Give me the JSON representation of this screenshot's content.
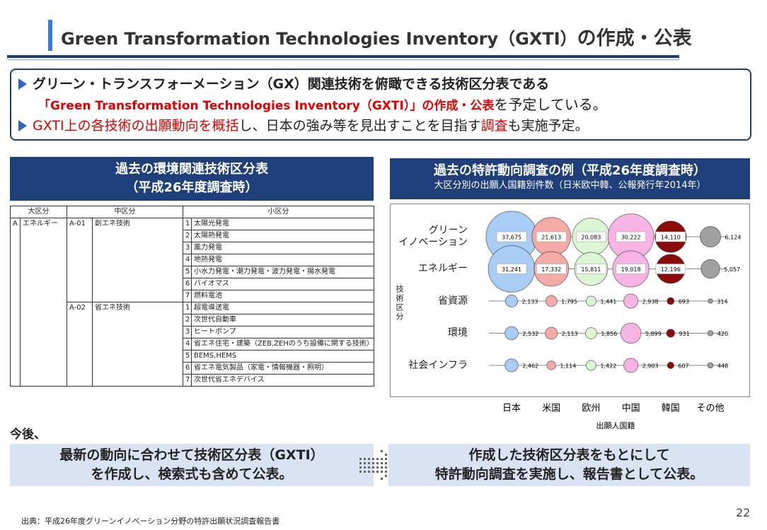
{
  "header": {
    "title": "Green Transformation Technologies Inventory（GXTI）",
    "title_suffix": "の作成・公表"
  },
  "summary": {
    "line1": "グリーン・トランスフォーメーション（GX）関連技術を俯瞰できる技術区分表である",
    "line2": [
      "「Green Transformation Technologies Inventory（GXTI）」の作成・公表",
      "を予定している。"
    ],
    "line3": [
      "GXTI上の各技術の出願動向を概括",
      "し、日本の強み等を見出すことを目指す",
      "調査",
      "も実施予定。"
    ]
  },
  "left_panel": {
    "title": [
      "過去の環境関連技術区分表",
      "（平成26年度調査時）"
    ],
    "table": {
      "header": [
        "大区分",
        "中区分",
        "小区分"
      ],
      "major": {
        "code": "A",
        "name": "エネルギー"
      },
      "groups": [
        {
          "code": "A-01",
          "name": "創エネ技術",
          "items": [
            {
              "no": "1",
              "name": "太陽光発電"
            },
            {
              "no": "2",
              "name": "太陽熱発電"
            },
            {
              "no": "3",
              "name": "風力発電"
            },
            {
              "no": "4",
              "name": "地熱発電"
            },
            {
              "no": "5",
              "name": "小水力発電・潮力発電・波力発電・揚水発電"
            },
            {
              "no": "6",
              "name": "バイオマス"
            },
            {
              "no": "7",
              "name": "燃料電池"
            }
          ]
        },
        {
          "code": "A-02",
          "name": "省エネ技術",
          "items": [
            {
              "no": "1",
              "name": "超電導送電"
            },
            {
              "no": "2",
              "name": "次世代自動車"
            },
            {
              "no": "3",
              "name": "ヒートポンプ"
            },
            {
              "no": "4",
              "name": "省エネ住宅・建築（ZEB,ZEHのうち設備に関する技術）"
            },
            {
              "no": "5",
              "name": "BEMS,HEMS"
            },
            {
              "no": "6",
              "name": "省エネ電気製品（家電・情報機器・照明）"
            },
            {
              "no": "7",
              "name": "次世代省エネデバイス"
            }
          ]
        }
      ]
    }
  },
  "chart_data": {
    "type": "bubble",
    "title": "過去の特許動向調査の例（平成26年度調査時）",
    "subtitle": "大区分別の出願人国籍別件数（日米欧中韓、公報発行年2014年）",
    "y_label": "技術区分",
    "x_label": "出願人国籍",
    "categories": [
      "日本",
      "米国",
      "欧州",
      "中国",
      "韓国",
      "その他"
    ],
    "colors": [
      "#a9cdf5",
      "#f4aaa6",
      "#dcf5d4",
      "#f8b4e4",
      "#8b0a0a",
      "#a0a0a0"
    ],
    "series": [
      {
        "name": "グリーン\nイノベーション",
        "values": [
          37675,
          21613,
          20083,
          30222,
          14110,
          6124
        ],
        "value_labels": [
          "37,675",
          "21,613",
          "20,083",
          "30,222",
          "14,110",
          "6,124"
        ]
      },
      {
        "name": "エネルギー",
        "values": [
          31241,
          17332,
          15811,
          19018,
          12196,
          5057
        ],
        "value_labels": [
          "31,241",
          "17,332",
          "15,811",
          "19,018",
          "12,196",
          "5,057"
        ]
      },
      {
        "name": "省資源",
        "values": [
          2133,
          1795,
          1441,
          2938,
          693,
          314
        ],
        "value_labels": [
          "2,133",
          "1,795",
          "1,441",
          "2,938",
          "693",
          "314"
        ]
      },
      {
        "name": "環境",
        "values": [
          2532,
          2113,
          1856,
          5899,
          931,
          420
        ],
        "value_labels": [
          "2,532",
          "2,113",
          "1,856",
          "5,899",
          "931",
          "420"
        ]
      },
      {
        "name": "社会インフラ",
        "values": [
          2462,
          1114,
          1422,
          2903,
          607,
          448
        ],
        "value_labels": [
          "2,462",
          "1,114",
          "1,422",
          "2,903",
          "607",
          "448"
        ]
      }
    ]
  },
  "outlook": {
    "label": "今後、",
    "box1": [
      "最新の動向に合わせて技術区分表（GXTI）",
      "を作成し、検索式も含めて公表。"
    ],
    "box2": [
      "作成した技術区分表をもとにして",
      "特許動向調査を実施し、報告書として公表。"
    ]
  },
  "footer": {
    "source": "出典：平成26年度グリーンイノベーション分野の特許出願状況調査報告書",
    "page": "22"
  }
}
